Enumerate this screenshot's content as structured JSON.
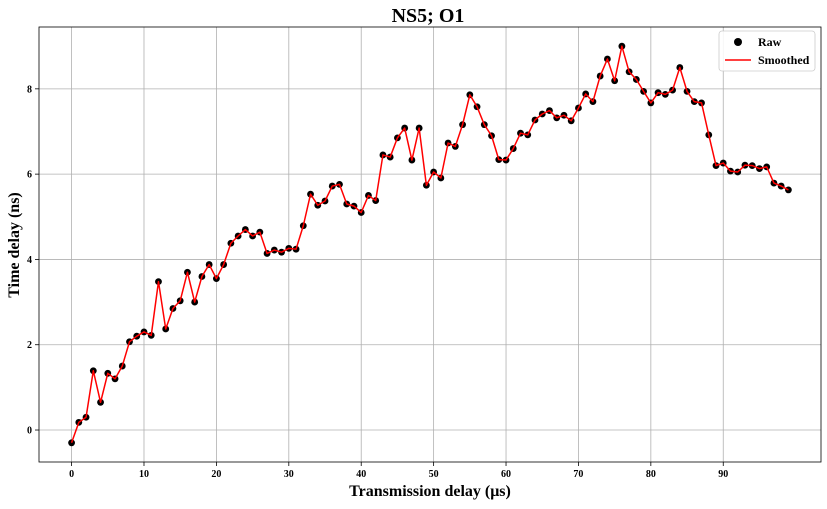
{
  "chart_data": {
    "type": "line",
    "title": "NS5; O1",
    "xlabel": "Transmission delay (μs)",
    "ylabel": "Time delay (ns)",
    "xlim": [
      -4.5,
      103.5
    ],
    "ylim": [
      -0.75,
      9.45
    ],
    "xticks": [
      0,
      10,
      20,
      30,
      40,
      50,
      60,
      70,
      80,
      90
    ],
    "yticks": [
      0,
      2,
      4,
      6,
      8
    ],
    "grid": true,
    "legend": {
      "position": "top-right",
      "entries": [
        "Raw",
        "Smoothed"
      ]
    },
    "x": [
      0,
      1,
      2,
      3,
      4,
      5,
      6,
      7,
      8,
      9,
      10,
      11,
      12,
      13,
      14,
      15,
      16,
      17,
      18,
      19,
      20,
      21,
      22,
      23,
      24,
      25,
      26,
      27,
      28,
      29,
      30,
      31,
      32,
      33,
      34,
      35,
      36,
      37,
      38,
      39,
      40,
      41,
      42,
      43,
      44,
      45,
      46,
      47,
      48,
      49,
      50,
      51,
      52,
      53,
      54,
      55,
      56,
      57,
      58,
      59,
      60,
      61,
      62,
      63,
      64,
      65,
      66,
      67,
      68,
      69,
      70,
      71,
      72,
      73,
      74,
      75,
      76,
      77,
      78,
      79,
      80,
      81,
      82,
      83,
      84,
      85,
      86,
      87,
      88,
      89,
      90,
      91,
      92,
      93,
      94,
      95,
      96,
      97,
      98,
      99
    ],
    "series": [
      {
        "name": "Raw",
        "style": "markers",
        "color": "#000000",
        "values": [
          -0.3,
          0.18,
          0.3,
          1.39,
          0.65,
          1.33,
          1.2,
          1.5,
          2.07,
          2.2,
          2.3,
          2.22,
          3.48,
          2.37,
          2.85,
          3.03,
          3.7,
          3.0,
          3.6,
          3.88,
          3.55,
          3.88,
          4.38,
          4.55,
          4.7,
          4.55,
          4.64,
          4.14,
          4.22,
          4.17,
          4.26,
          4.24,
          4.79,
          5.53,
          5.27,
          5.37,
          5.72,
          5.76,
          5.3,
          5.25,
          5.1,
          5.5,
          5.38,
          6.45,
          6.4,
          6.85,
          7.08,
          6.33,
          7.08,
          5.74,
          6.05,
          5.91,
          6.73,
          6.65,
          7.16,
          7.86,
          7.58,
          7.16,
          6.9,
          6.34,
          6.33,
          6.6,
          6.96,
          6.92,
          7.27,
          7.41,
          7.49,
          7.32,
          7.38,
          7.25,
          7.55,
          7.88,
          7.7,
          8.3,
          8.7,
          8.19,
          9.0,
          8.4,
          8.22,
          7.94,
          7.67,
          7.91,
          7.87,
          7.97,
          8.5,
          7.94,
          7.7,
          7.67,
          6.92,
          6.2,
          6.26,
          6.07,
          6.05,
          6.21,
          6.2,
          6.13,
          6.17,
          5.79,
          5.72,
          5.63
        ]
      },
      {
        "name": "Smoothed",
        "style": "line",
        "color": "#ff0000",
        "values": [
          -0.3,
          0.18,
          0.3,
          1.39,
          0.65,
          1.33,
          1.2,
          1.5,
          2.07,
          2.2,
          2.3,
          2.22,
          3.48,
          2.37,
          2.85,
          3.03,
          3.7,
          3.0,
          3.6,
          3.88,
          3.55,
          3.88,
          4.38,
          4.55,
          4.7,
          4.55,
          4.64,
          4.14,
          4.22,
          4.17,
          4.26,
          4.24,
          4.79,
          5.53,
          5.27,
          5.37,
          5.72,
          5.76,
          5.3,
          5.25,
          5.1,
          5.5,
          5.38,
          6.45,
          6.4,
          6.85,
          7.08,
          6.33,
          7.08,
          5.74,
          6.05,
          5.91,
          6.73,
          6.65,
          7.16,
          7.86,
          7.58,
          7.16,
          6.9,
          6.34,
          6.33,
          6.6,
          6.96,
          6.92,
          7.27,
          7.41,
          7.49,
          7.32,
          7.38,
          7.25,
          7.55,
          7.88,
          7.7,
          8.3,
          8.7,
          8.19,
          9.0,
          8.4,
          8.22,
          7.94,
          7.67,
          7.91,
          7.87,
          7.97,
          8.5,
          7.94,
          7.7,
          7.67,
          6.92,
          6.2,
          6.26,
          6.07,
          6.05,
          6.21,
          6.2,
          6.13,
          6.17,
          5.79,
          5.72,
          5.63
        ]
      }
    ]
  }
}
